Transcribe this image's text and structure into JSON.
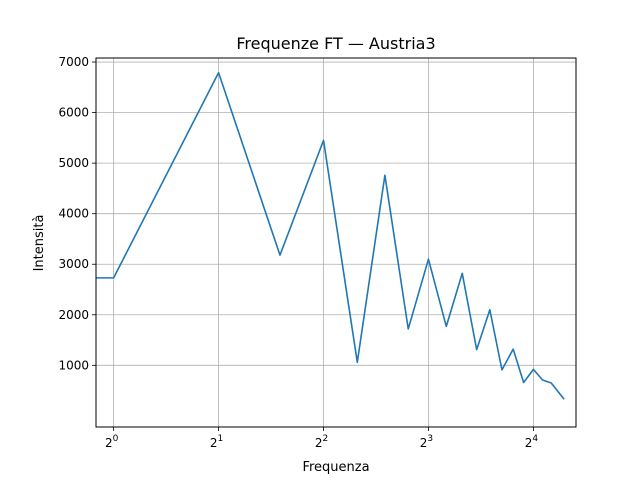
{
  "chart_data": {
    "type": "line",
    "title": "Frequenze FT — Austria3",
    "xlabel": "Frequenza",
    "ylabel": "Intensità",
    "x_scale": "log2",
    "xlim": [
      0.89,
      21.2
    ],
    "ylim": [
      -220,
      7080
    ],
    "grid": true,
    "x_ticks": [
      {
        "value": 1,
        "base": "2",
        "exp": "0"
      },
      {
        "value": 2,
        "base": "2",
        "exp": "1"
      },
      {
        "value": 4,
        "base": "2",
        "exp": "2"
      },
      {
        "value": 8,
        "base": "2",
        "exp": "3"
      },
      {
        "value": 16,
        "base": "2",
        "exp": "4"
      }
    ],
    "y_ticks": [
      {
        "value": 1000,
        "label": "1000"
      },
      {
        "value": 2000,
        "label": "2000"
      },
      {
        "value": 3000,
        "label": "3000"
      },
      {
        "value": 4000,
        "label": "4000"
      },
      {
        "value": 5000,
        "label": "5000"
      },
      {
        "value": 6000,
        "label": "6000"
      },
      {
        "value": 7000,
        "label": "7000"
      }
    ],
    "series": [
      {
        "color": "#1f77b4",
        "x": [
          0.89,
          1,
          2,
          3,
          4,
          5,
          6,
          7,
          8,
          9,
          10,
          11,
          12,
          13,
          14,
          15,
          16,
          17,
          18,
          19.6
        ],
        "y": [
          2730,
          2730,
          6790,
          3180,
          5450,
          1060,
          4760,
          1720,
          3100,
          1770,
          2820,
          1310,
          2100,
          910,
          1320,
          660,
          920,
          710,
          650,
          330
        ]
      }
    ]
  }
}
